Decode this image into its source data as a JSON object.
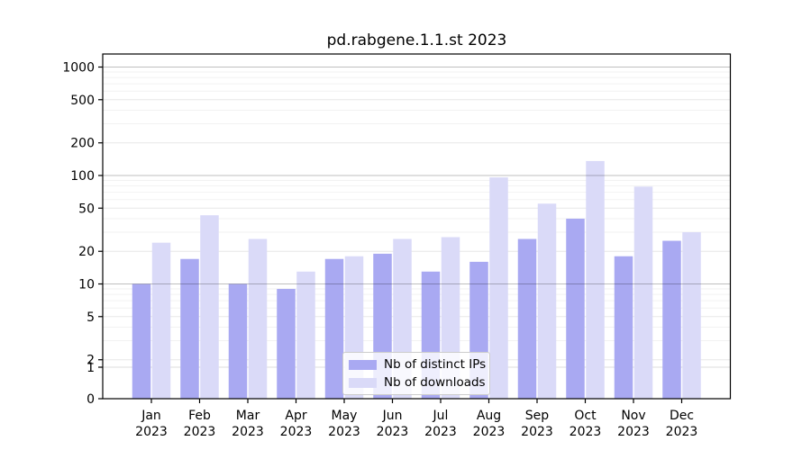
{
  "chart_data": {
    "type": "bar",
    "title": "pd.rabgene.1.1.st 2023",
    "categories": [
      "Jan 2023",
      "Feb 2023",
      "Mar 2023",
      "Apr 2023",
      "May 2023",
      "Jun 2023",
      "Jul 2023",
      "Aug 2023",
      "Sep 2023",
      "Oct 2023",
      "Nov 2023",
      "Dec 2023"
    ],
    "series": [
      {
        "name": "Nb of distinct IPs",
        "color": "#a9a9f2",
        "values": [
          10,
          17,
          10,
          9,
          17,
          19,
          13,
          16,
          26,
          40,
          18,
          25
        ]
      },
      {
        "name": "Nb of downloads",
        "color": "#dadaf8",
        "values": [
          24,
          43,
          26,
          13,
          18,
          26,
          27,
          96,
          55,
          136,
          79,
          30
        ]
      }
    ],
    "yscale": "log",
    "yticks": [
      1000,
      500,
      200,
      100,
      50,
      20,
      10,
      5,
      2,
      1,
      0
    ],
    "ylim": [
      0,
      1400
    ],
    "grid": true,
    "legend_position": "lower center",
    "axis_color": "#000000",
    "grid_major_color": "#c9c9c9",
    "grid_minor_color": "#f2f2f2"
  }
}
